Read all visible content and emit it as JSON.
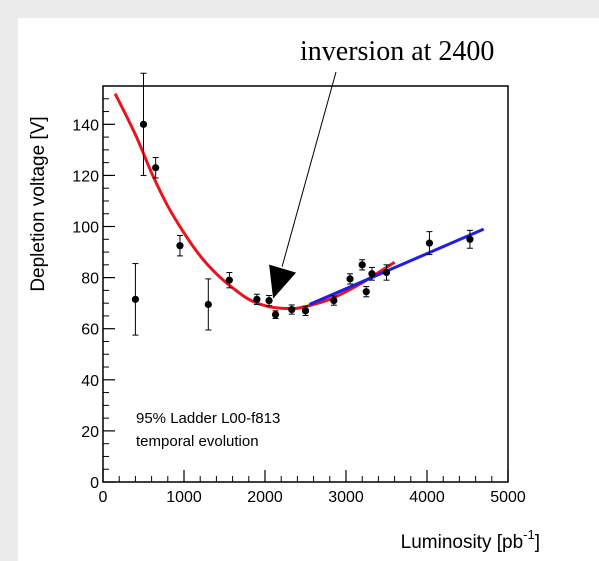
{
  "chart_data": {
    "type": "scatter",
    "title": "",
    "xlabel": "Luminosity [pb",
    "xlabel_sup": "-1",
    "xlabel_end": "]",
    "ylabel": "Depletion voltage [V]",
    "xlim": [
      0,
      5000
    ],
    "ylim": [
      0,
      155
    ],
    "x_ticks": [
      "0",
      "1000",
      "2000",
      "3000",
      "4000",
      "5000"
    ],
    "y_ticks": [
      "0",
      "20",
      "40",
      "60",
      "80",
      "100",
      "120",
      "140"
    ],
    "grid": false,
    "annotation": {
      "text": "inversion at 2400",
      "arrow_tip": {
        "x": 2100,
        "y": 71
      }
    },
    "note_lines": [
      "95%  Ladder L00-f813",
      "temporal evolution"
    ],
    "series": [
      {
        "type": "points",
        "color": "#000000",
        "x": [
          400,
          500,
          650,
          950,
          1300,
          1560,
          1900,
          2050,
          2130,
          2330,
          2500,
          2850,
          3050,
          3200,
          3250,
          3320,
          3500,
          4030,
          4530
        ],
        "y": [
          71.5,
          140,
          123,
          92.5,
          69.5,
          79,
          71.5,
          71,
          65.5,
          67.5,
          67,
          71,
          79.5,
          85,
          74.5,
          81.5,
          82,
          93.5,
          95
        ],
        "y_err": [
          14,
          20,
          4,
          4,
          10,
          3,
          2,
          2,
          1.5,
          1.8,
          1.8,
          1.8,
          2,
          2,
          2,
          2.5,
          3,
          4.5,
          3.5
        ]
      },
      {
        "type": "fit",
        "color": "#e8141e",
        "x": [
          150,
          400,
          600,
          800,
          1000,
          1200,
          1400,
          1600,
          1800,
          2000,
          2200,
          2400,
          2600,
          2800,
          3000,
          3200,
          3400,
          3600
        ],
        "y": [
          152,
          136,
          121,
          108,
          97.5,
          88.5,
          81.5,
          76,
          71.5,
          69,
          68,
          68,
          69.5,
          71.5,
          74.5,
          78,
          82,
          86
        ]
      },
      {
        "type": "fit",
        "color": "#1e1ee6",
        "x": [
          2550,
          4700
        ],
        "y": [
          69.5,
          99
        ]
      }
    ]
  }
}
